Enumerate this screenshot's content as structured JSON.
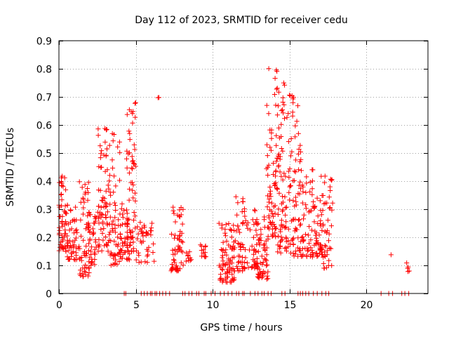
{
  "chart_data": {
    "type": "scatter",
    "title": "Day 112 of 2023, SRMTID for receiver cedu",
    "xlabel": "GPS time / hours",
    "ylabel": "SRMTID / TECUs",
    "xlim": [
      0,
      24
    ],
    "ylim": [
      0,
      0.9
    ],
    "xticks": [
      "0",
      "5",
      "10",
      "15",
      "20"
    ],
    "xtick_values": [
      0,
      5,
      10,
      15,
      20
    ],
    "yticks": [
      "0",
      "0.1",
      "0.2",
      "0.3",
      "0.4",
      "0.5",
      "0.6",
      "0.7",
      "0.8",
      "0.9"
    ],
    "ytick_values": [
      0,
      0.1,
      0.2,
      0.3,
      0.4,
      0.5,
      0.6,
      0.7,
      0.8,
      0.9
    ],
    "grid": true,
    "marker": "+",
    "color": "#ff0000",
    "clusters": [
      {
        "x": [
          0.0,
          0.6
        ],
        "y": [
          0.15,
          0.42
        ],
        "n": 60
      },
      {
        "x": [
          0.5,
          1.3
        ],
        "y": [
          0.12,
          0.32
        ],
        "n": 45
      },
      {
        "x": [
          1.3,
          2.0
        ],
        "y": [
          0.06,
          0.44
        ],
        "n": 55
      },
      {
        "x": [
          1.9,
          2.5
        ],
        "y": [
          0.1,
          0.3
        ],
        "n": 40
      },
      {
        "x": [
          2.5,
          3.3
        ],
        "y": [
          0.15,
          0.59
        ],
        "n": 75
      },
      {
        "x": [
          3.3,
          4.0
        ],
        "y": [
          0.1,
          0.58
        ],
        "n": 60
      },
      {
        "x": [
          4.0,
          4.6
        ],
        "y": [
          0.12,
          0.32
        ],
        "n": 40
      },
      {
        "x": [
          4.4,
          5.0
        ],
        "y": [
          0.15,
          0.68
        ],
        "n": 65
      },
      {
        "x": [
          5.0,
          6.2
        ],
        "y": [
          0.11,
          0.27
        ],
        "n": 40
      },
      {
        "x": [
          6.4,
          6.6
        ],
        "y": [
          0.64,
          0.7
        ],
        "n": 2
      },
      {
        "x": [
          7.3,
          8.1
        ],
        "y": [
          0.08,
          0.31
        ],
        "n": 60
      },
      {
        "x": [
          8.2,
          8.6
        ],
        "y": [
          0.11,
          0.15
        ],
        "n": 10
      },
      {
        "x": [
          9.2,
          9.6
        ],
        "y": [
          0.13,
          0.18
        ],
        "n": 12
      },
      {
        "x": [
          10.4,
          11.4
        ],
        "y": [
          0.04,
          0.28
        ],
        "n": 75
      },
      {
        "x": [
          11.3,
          12.2
        ],
        "y": [
          0.08,
          0.35
        ],
        "n": 55
      },
      {
        "x": [
          12.2,
          13.0
        ],
        "y": [
          0.09,
          0.33
        ],
        "n": 40
      },
      {
        "x": [
          12.9,
          13.6
        ],
        "y": [
          0.05,
          0.3
        ],
        "n": 55
      },
      {
        "x": [
          13.5,
          14.2
        ],
        "y": [
          0.2,
          0.81
        ],
        "n": 75
      },
      {
        "x": [
          14.2,
          15.0
        ],
        "y": [
          0.14,
          0.75
        ],
        "n": 80
      },
      {
        "x": [
          15.0,
          15.8
        ],
        "y": [
          0.13,
          0.71
        ],
        "n": 75
      },
      {
        "x": [
          15.8,
          16.6
        ],
        "y": [
          0.13,
          0.45
        ],
        "n": 50
      },
      {
        "x": [
          16.6,
          17.2
        ],
        "y": [
          0.13,
          0.35
        ],
        "n": 40
      },
      {
        "x": [
          17.0,
          17.8
        ],
        "y": [
          0.09,
          0.42
        ],
        "n": 50
      },
      {
        "x": [
          21.6,
          21.6
        ],
        "y": [
          0.13,
          0.14
        ],
        "n": 1
      },
      {
        "x": [
          22.6,
          22.8
        ],
        "y": [
          0.07,
          0.12
        ],
        "n": 5
      }
    ],
    "zero_points_x": [
      4.25,
      4.35,
      5.35,
      5.55,
      5.75,
      5.95,
      6.05,
      6.25,
      6.35,
      6.55,
      6.75,
      6.95,
      7.2,
      8.05,
      8.2,
      8.45,
      8.65,
      8.95,
      9.1,
      9.45,
      9.55,
      9.9,
      10.15,
      10.5,
      10.75,
      11.0,
      11.25,
      11.55,
      11.7,
      11.95,
      12.05,
      12.45,
      12.75,
      12.95,
      13.2,
      13.35,
      13.6,
      13.8,
      14.5,
      14.7,
      15.55,
      15.7,
      15.85,
      16.05,
      16.25,
      16.55,
      16.8,
      17.1,
      17.35,
      17.55,
      20.95,
      21.45,
      21.7,
      22.3,
      22.5,
      22.75
    ]
  }
}
